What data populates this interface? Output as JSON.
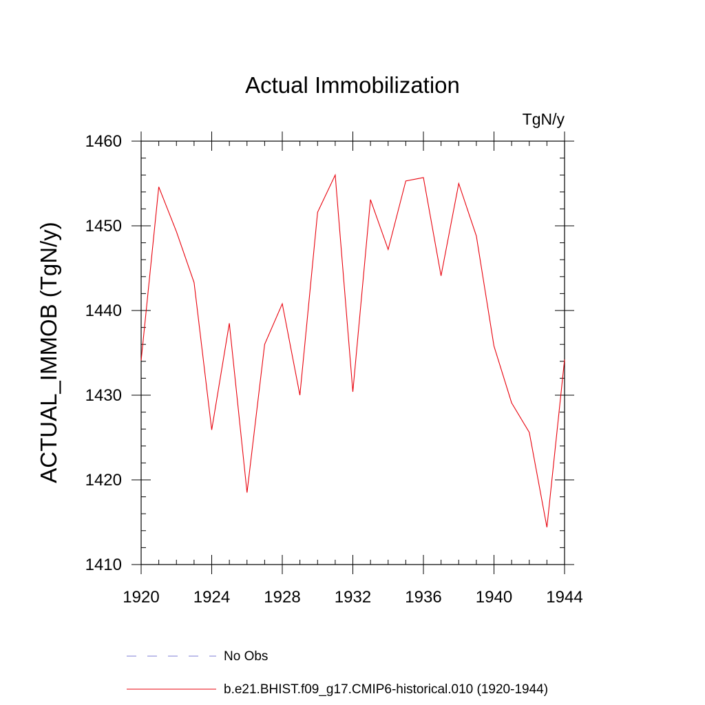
{
  "chart_data": {
    "type": "line",
    "title": "Actual Immobilization",
    "units_label": "TgN/y",
    "xlabel": "",
    "ylabel": "ACTUAL_IMMOB  (TgN/y)",
    "xlim": [
      1920,
      1944
    ],
    "ylim": [
      1410,
      1460
    ],
    "xticks": [
      1920,
      1924,
      1928,
      1932,
      1936,
      1940,
      1944
    ],
    "yticks": [
      1410,
      1420,
      1430,
      1440,
      1450,
      1460
    ],
    "grid": false,
    "legend_position": "bottom-left",
    "x": [
      1920,
      1921,
      1922,
      1923,
      1924,
      1925,
      1926,
      1927,
      1928,
      1929,
      1930,
      1931,
      1932,
      1933,
      1934,
      1935,
      1936,
      1937,
      1938,
      1939,
      1940,
      1941,
      1942,
      1943,
      1944
    ],
    "series": [
      {
        "name": "b.e21.BHIST.f09_g17.CMIP6-historical.010 (1920-1944)",
        "color": "#e8000b",
        "values": [
          1434.1,
          1454.6,
          1449.3,
          1443.3,
          1425.9,
          1438.5,
          1418.5,
          1436.0,
          1440.8,
          1430.0,
          1451.6,
          1456.0,
          1430.4,
          1453.1,
          1447.2,
          1455.3,
          1455.7,
          1444.1,
          1455.0,
          1448.8,
          1435.8,
          1429.1,
          1425.6,
          1414.4,
          1434.2
        ]
      }
    ],
    "legend": [
      {
        "label": "No Obs",
        "style": "dashed",
        "color": "#7b7bd6"
      },
      {
        "label": "b.e21.BHIST.f09_g17.CMIP6-historical.010 (1920-1944)",
        "style": "solid",
        "color": "#e8000b"
      }
    ]
  }
}
